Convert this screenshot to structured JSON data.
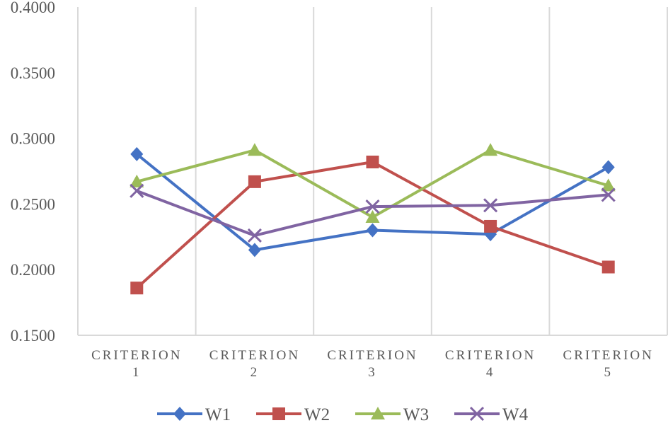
{
  "chart_data": {
    "type": "line",
    "categories": [
      [
        "CRITERION",
        "1"
      ],
      [
        "CRITERION",
        "2"
      ],
      [
        "CRITERION",
        "3"
      ],
      [
        "CRITERION",
        "4"
      ],
      [
        "CRITERION",
        "5"
      ]
    ],
    "ylim": [
      0.15,
      0.4
    ],
    "yticks": [
      0.15,
      0.2,
      0.25,
      0.3,
      0.35,
      0.4
    ],
    "ytick_labels": [
      "0.1500",
      "0.2000",
      "0.2500",
      "0.3000",
      "0.3500",
      "0.4000"
    ],
    "grid": "vertical",
    "legend": "bottom",
    "series": [
      {
        "name": "W1",
        "color": "#4472C4",
        "marker": "diamond",
        "values": [
          0.288,
          0.215,
          0.23,
          0.227,
          0.278
        ]
      },
      {
        "name": "W2",
        "color": "#C0504D",
        "marker": "square",
        "values": [
          0.186,
          0.267,
          0.282,
          0.233,
          0.202
        ]
      },
      {
        "name": "W3",
        "color": "#9BBB59",
        "marker": "triangle",
        "values": [
          0.267,
          0.291,
          0.24,
          0.291,
          0.264
        ]
      },
      {
        "name": "W4",
        "color": "#8064A2",
        "marker": "x",
        "values": [
          0.26,
          0.226,
          0.248,
          0.249,
          0.257
        ]
      }
    ]
  }
}
